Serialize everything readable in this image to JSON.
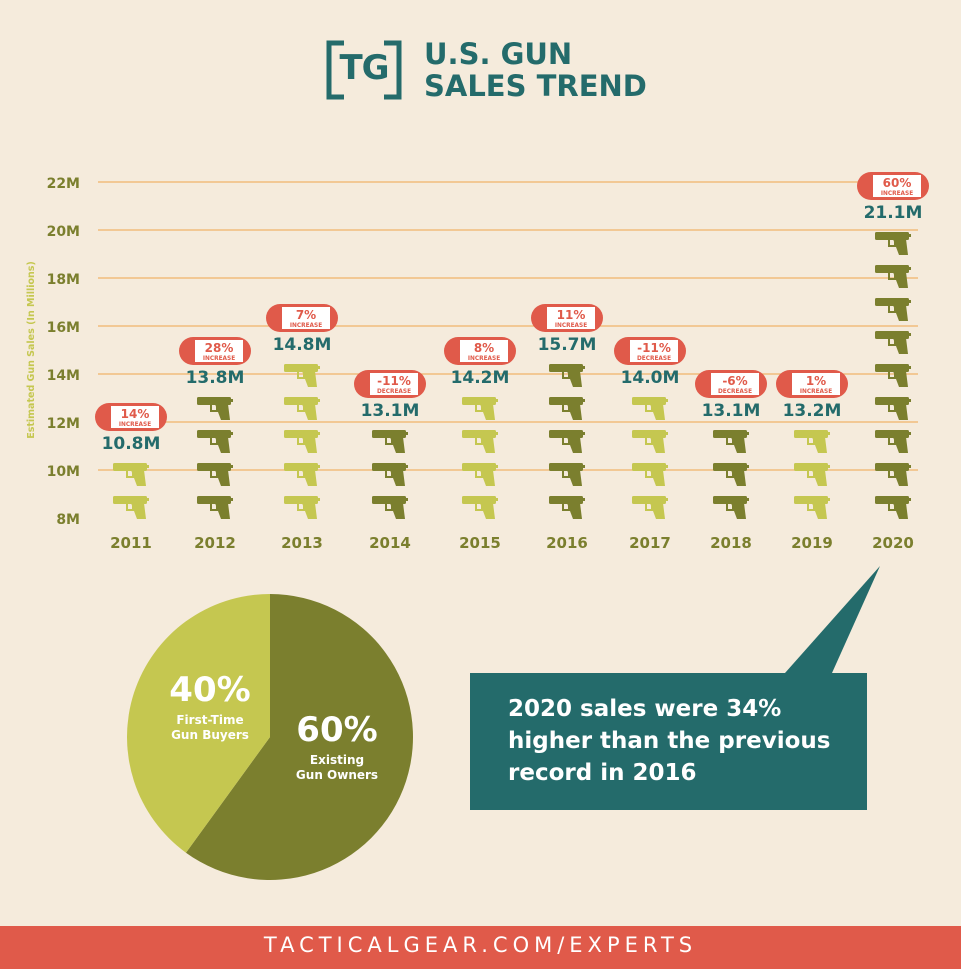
{
  "header": {
    "logo_text": "TG",
    "title_line1": "U.S. GUN",
    "title_line2": "SALES TREND"
  },
  "colors": {
    "teal": "#246b6b",
    "gun_light": "#c5c750",
    "gun_dark": "#7b7f2e",
    "gridline": "#f0b46a",
    "badge": "#e05a4a",
    "axis_text": "#7b7f2e"
  },
  "chart_data": {
    "type": "bar",
    "ylabel": "Estimated Gun Sales (In Millions)",
    "ylim": [
      8,
      22
    ],
    "y_ticks": [
      "8M",
      "10M",
      "12M",
      "14M",
      "16M",
      "18M",
      "20M",
      "22M"
    ],
    "categories": [
      "2011",
      "2012",
      "2013",
      "2014",
      "2015",
      "2016",
      "2017",
      "2018",
      "2019",
      "2020"
    ],
    "values": [
      10.8,
      13.8,
      14.8,
      13.1,
      14.2,
      15.7,
      14.0,
      13.1,
      13.2,
      21.1
    ],
    "value_labels": [
      "10.8M",
      "13.8M",
      "14.8M",
      "13.1M",
      "14.2M",
      "15.7M",
      "14.0M",
      "13.1M",
      "13.2M",
      "21.1M"
    ],
    "change_pct": [
      "14%",
      "28%",
      "7%",
      "-11%",
      "8%",
      "11%",
      "-11%",
      "-6%",
      "1%",
      "60%"
    ],
    "change_type": [
      "INCREASE",
      "INCREASE",
      "INCREASE",
      "DECREASE",
      "INCREASE",
      "INCREASE",
      "DECREASE",
      "DECREASE",
      "INCREASE",
      "INCREASE"
    ],
    "gun_color": [
      "light",
      "dark",
      "light",
      "dark",
      "light",
      "dark",
      "light",
      "dark",
      "light",
      "dark"
    ]
  },
  "pie_data": {
    "type": "pie",
    "slices": [
      {
        "pct_label": "40%",
        "label_line1": "First-Time",
        "label_line2": "Gun Buyers",
        "value": 40,
        "color": "#c5c750"
      },
      {
        "pct_label": "60%",
        "label_line1": "Existing",
        "label_line2": "Gun Owners",
        "value": 60,
        "color": "#7b7f2e"
      }
    ]
  },
  "callout": {
    "line1_prefix": "2020 sales were ",
    "line1_highlight": "34%",
    "line2": "higher than the previous",
    "line3": "record in 2016"
  },
  "footer": {
    "text": "TACTICALGEAR.COM/EXPERTS"
  }
}
